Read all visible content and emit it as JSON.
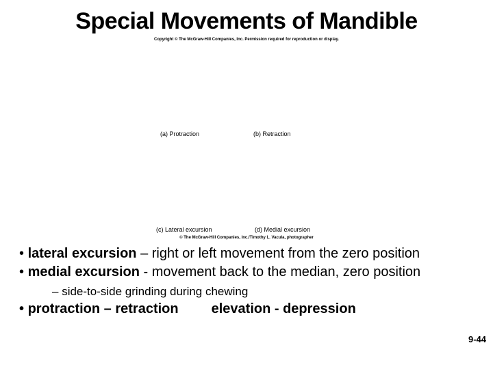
{
  "title": "Special Movements of Mandible",
  "copyright_top": "Copyright © The McGraw-Hill Companies, Inc. Permission required for reproduction or display.",
  "captions": {
    "a": "(a) Protraction",
    "b": "(b) Retraction",
    "c": "(c) Lateral excursion",
    "d": "(d) Medial excursion"
  },
  "credit": "© The McGraw-Hill Companies, Inc./Timothy L. Vacula, photographer",
  "bullets": {
    "b1_bold": "lateral excursion",
    "b1_rest": " – right or left movement from the zero position",
    "b2_bold": "medial excursion",
    "b2_rest": " - movement back to the  median, zero position",
    "sub1": "side-to-side grinding during chewing",
    "b3_left": "protraction – retraction",
    "b3_right": "elevation - depression"
  },
  "page_num": "9-44"
}
